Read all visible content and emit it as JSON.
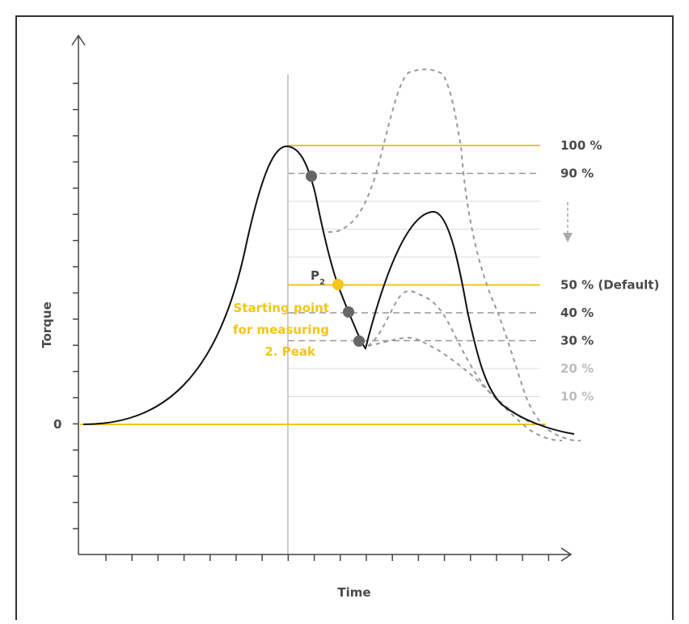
{
  "colors": {
    "accent": "#f5c518",
    "curve": "#111111",
    "marker": "#666666",
    "dashed": "#999999",
    "guide": "#dddddd",
    "frame": "#333333",
    "axis": "#444444"
  },
  "axes": {
    "x_label": "Time",
    "y_label": "Torque",
    "zero_label": "0"
  },
  "levels": [
    {
      "label": "100 %",
      "value": 100,
      "style": "accent"
    },
    {
      "label": "90 %",
      "value": 90,
      "style": "dashed"
    },
    {
      "label": "",
      "value": 80,
      "style": "guide"
    },
    {
      "label": "",
      "value": 70,
      "style": "guide"
    },
    {
      "label": "",
      "value": 60,
      "style": "guide"
    },
    {
      "label": "50 % (Default)",
      "value": 50,
      "style": "accent"
    },
    {
      "label": "40 %",
      "value": 40,
      "style": "dashed"
    },
    {
      "label": "30 %",
      "value": 30,
      "style": "dashed"
    },
    {
      "label": "20 %",
      "value": 20,
      "style": "faint"
    },
    {
      "label": "10 %",
      "value": 10,
      "style": "faint"
    }
  ],
  "point_label": {
    "main": "P",
    "sub": "2"
  },
  "annotation": [
    "Starting point",
    "for measuring",
    "2. Peak"
  ]
}
